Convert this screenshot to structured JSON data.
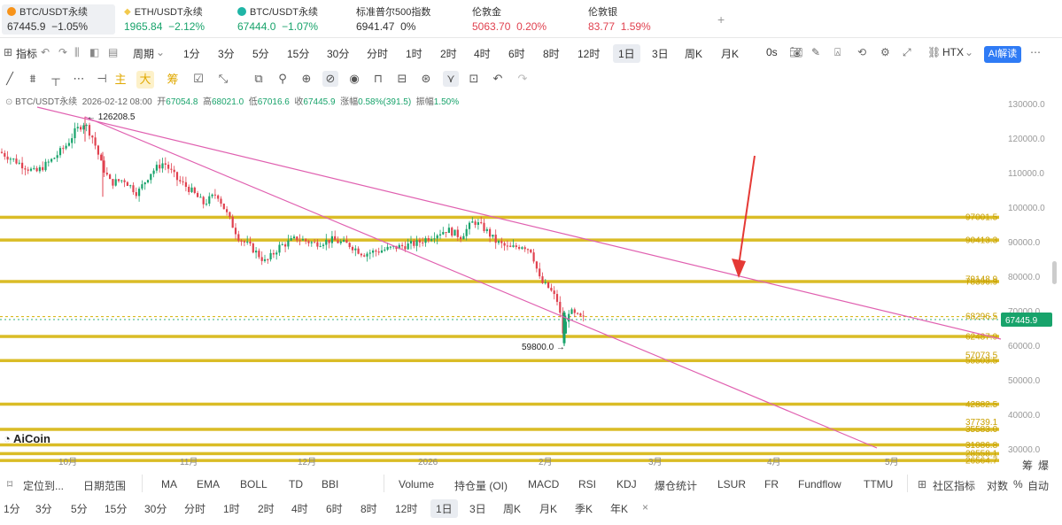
{
  "ticker_tabs": [
    {
      "name": "BTC/USDT永续",
      "price": "67445.9",
      "change": "−1.05%",
      "icon": "bitcoin-icon",
      "color": "#f7931a"
    },
    {
      "name": "ETH/USDT永续",
      "price": "1965.84",
      "change": "−2.12%",
      "icon": "ethereum-icon",
      "color": "#f2c94c"
    },
    {
      "name": "BTC/USDT永续",
      "price": "67444.0",
      "change": "−1.07%",
      "icon": "exchange-icon",
      "color": "#1fb5a6"
    },
    {
      "name": "标准普尔500指数",
      "price": "6941.47",
      "change": "0%",
      "icon": "",
      "color": ""
    },
    {
      "name": "伦敦金",
      "price": "5063.70",
      "change": "0.20%",
      "icon": "",
      "color": ""
    },
    {
      "name": "伦敦银",
      "price": "83.77",
      "change": "1.59%",
      "icon": "",
      "color": ""
    }
  ],
  "add_tab": "+",
  "toolbar": {
    "indicator": "指标",
    "period": "周期",
    "intervals": [
      "1分",
      "3分",
      "5分",
      "15分",
      "30分",
      "分时",
      "1时",
      "2时",
      "4时",
      "6时",
      "8时",
      "12时",
      "1日",
      "3日",
      "周K",
      "月K"
    ],
    "selected_interval": "1日",
    "countdown": "0s",
    "exchange": "HTX",
    "ai_button": "AI解读"
  },
  "draw_toolbar": {
    "main_chars": [
      "主",
      "大",
      "筹"
    ]
  },
  "info": {
    "symbol": "BTC/USDT永续",
    "time": "2026-02-12 08:00",
    "open_label": "开",
    "open": "67054.8",
    "high_label": "高",
    "high": "68021.0",
    "low_label": "低",
    "low": "67016.6",
    "close_label": "收",
    "close": "67445.9",
    "chg_label": "涨幅",
    "chg": "0.58%(391.5)",
    "amp_label": "振幅",
    "amp": "1.50%"
  },
  "chart_data": {
    "type": "candlestick",
    "y_ticks": [
      "130000.0",
      "120000.0",
      "110000.0",
      "100000.0",
      "90000.0",
      "80000.0",
      "70000.0",
      "60000.0",
      "50000.0",
      "40000.0",
      "30000.0"
    ],
    "x_ticks": [
      "10月",
      "11月",
      "12月",
      "2026",
      "2月",
      "3月",
      "4月",
      "5月"
    ],
    "high_marker": "126208.5",
    "low_marker": "59800.0",
    "current_price": "67445.9",
    "level_labels": [
      "97001.5",
      "90413.3",
      "79148.9",
      "78396.9",
      "68296.5",
      "62487.9",
      "57073.5",
      "55503.5",
      "42882.5",
      "37739.1",
      "35583.0",
      "31086.8",
      "28558.1",
      "26564.7"
    ],
    "colors": {
      "up": "#18a36b",
      "down": "#e0414f",
      "level": "#d4b000",
      "trend": "#e060b0",
      "arrow": "#e53935"
    }
  },
  "bottom_toolbar": {
    "left_items": [
      "定位到...",
      "日期范围"
    ],
    "indicators": [
      "MA",
      "EMA",
      "BOLL",
      "TD",
      "BBI",
      "Volume",
      "持仓量 (OI)",
      "MACD",
      "RSI",
      "KDJ",
      "爆仓统计",
      "LSUR",
      "FR",
      "Fundflow",
      "TTMU"
    ],
    "community": "社区指标",
    "log": "对数",
    "percent": "%",
    "auto": "自动",
    "chip": "筹",
    "burst": "爆"
  },
  "bottom_intervals": [
    "1分",
    "3分",
    "5分",
    "15分",
    "30分",
    "分时",
    "1时",
    "2时",
    "4时",
    "6时",
    "8时",
    "12时",
    "1日",
    "3日",
    "周K",
    "月K",
    "季K",
    "年K",
    "×"
  ],
  "bottom_selected": "1日",
  "logo_text": "AiCoin"
}
